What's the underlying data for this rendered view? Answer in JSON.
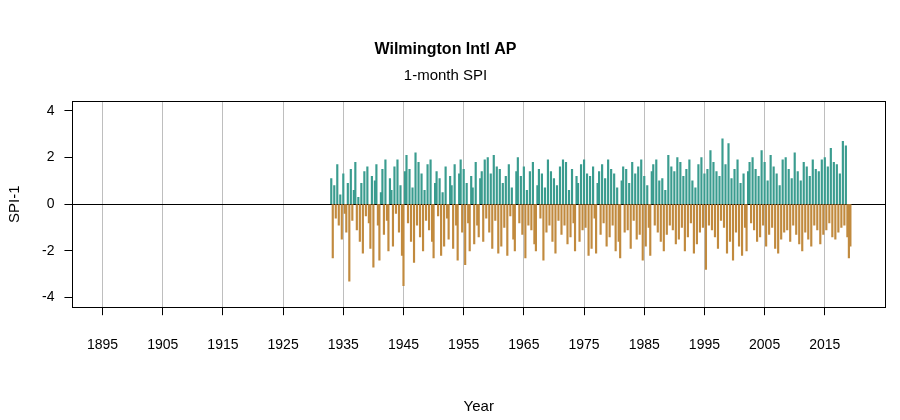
{
  "chart_data": {
    "type": "bar",
    "title": "Wilmington Intl AP",
    "subtitle": "1-month SPI",
    "x_label": "Year",
    "y_label": "SPI-1",
    "x": [
      1933,
      1933.25,
      1933.5,
      1933.75,
      1934,
      1934.25,
      1934.5,
      1934.75,
      1935,
      1935.25,
      1935.5,
      1935.75,
      1936,
      1936.25,
      1936.5,
      1936.75,
      1937,
      1937.25,
      1937.5,
      1937.75,
      1938,
      1938.25,
      1938.5,
      1938.75,
      1939,
      1939.25,
      1939.5,
      1939.75,
      1940,
      1940.25,
      1940.5,
      1940.75,
      1941,
      1941.25,
      1941.5,
      1941.75,
      1942,
      1942.25,
      1942.5,
      1942.75,
      1943,
      1943.25,
      1943.5,
      1943.75,
      1944,
      1944.25,
      1944.5,
      1944.75,
      1945,
      1945.25,
      1945.5,
      1945.75,
      1946,
      1946.25,
      1946.5,
      1946.75,
      1947,
      1947.25,
      1947.5,
      1947.75,
      1948,
      1948.25,
      1948.5,
      1948.75,
      1949,
      1949.25,
      1949.5,
      1949.75,
      1950,
      1950.25,
      1950.5,
      1950.75,
      1951,
      1951.25,
      1951.5,
      1951.75,
      1952,
      1952.25,
      1952.5,
      1952.75,
      1953,
      1953.25,
      1953.5,
      1953.75,
      1954,
      1954.25,
      1954.5,
      1954.75,
      1955,
      1955.25,
      1955.5,
      1955.75,
      1956,
      1956.25,
      1956.5,
      1956.75,
      1957,
      1957.25,
      1957.5,
      1957.75,
      1958,
      1958.25,
      1958.5,
      1958.75,
      1959,
      1959.25,
      1959.5,
      1959.75,
      1960,
      1960.25,
      1960.5,
      1960.75,
      1961,
      1961.25,
      1961.5,
      1961.75,
      1962,
      1962.25,
      1962.5,
      1962.75,
      1963,
      1963.25,
      1963.5,
      1963.75,
      1964,
      1964.25,
      1964.5,
      1964.75,
      1965,
      1965.25,
      1965.5,
      1965.75,
      1966,
      1966.25,
      1966.5,
      1966.75,
      1967,
      1967.25,
      1967.5,
      1967.75,
      1968,
      1968.25,
      1968.5,
      1968.75,
      1969,
      1969.25,
      1969.5,
      1969.75,
      1970,
      1970.25,
      1970.5,
      1970.75,
      1971,
      1971.25,
      1971.5,
      1971.75,
      1972,
      1972.25,
      1972.5,
      1972.75,
      1973,
      1973.25,
      1973.5,
      1973.75,
      1974,
      1974.25,
      1974.5,
      1974.75,
      1975,
      1975.25,
      1975.5,
      1975.75,
      1976,
      1976.25,
      1976.5,
      1976.75,
      1977,
      1977.25,
      1977.5,
      1977.75,
      1978,
      1978.25,
      1978.5,
      1978.75,
      1979,
      1979.25,
      1979.5,
      1979.75,
      1980,
      1980.25,
      1980.5,
      1980.75,
      1981,
      1981.25,
      1981.5,
      1981.75,
      1982,
      1982.25,
      1982.5,
      1982.75,
      1983,
      1983.25,
      1983.5,
      1983.75,
      1984,
      1984.25,
      1984.5,
      1984.75,
      1985,
      1985.25,
      1985.5,
      1985.75,
      1986,
      1986.25,
      1986.5,
      1986.75,
      1987,
      1987.25,
      1987.5,
      1987.75,
      1988,
      1988.25,
      1988.5,
      1988.75,
      1989,
      1989.25,
      1989.5,
      1989.75,
      1990,
      1990.25,
      1990.5,
      1990.75,
      1991,
      1991.25,
      1991.5,
      1991.75,
      1992,
      1992.25,
      1992.5,
      1992.75,
      1993,
      1993.25,
      1993.5,
      1993.75,
      1994,
      1994.25,
      1994.5,
      1994.75,
      1995,
      1995.25,
      1995.5,
      1995.75,
      1996,
      1996.25,
      1996.5,
      1996.75,
      1997,
      1997.25,
      1997.5,
      1997.75,
      1998,
      1998.25,
      1998.5,
      1998.75,
      1999,
      1999.25,
      1999.5,
      1999.75,
      2000,
      2000.25,
      2000.5,
      2000.75,
      2001,
      2001.25,
      2001.5,
      2001.75,
      2002,
      2002.25,
      2002.5,
      2002.75,
      2003,
      2003.25,
      2003.5,
      2003.75,
      2004,
      2004.25,
      2004.5,
      2004.75,
      2005,
      2005.25,
      2005.5,
      2005.75,
      2006,
      2006.25,
      2006.5,
      2006.75,
      2007,
      2007.25,
      2007.5,
      2007.75,
      2008,
      2008.25,
      2008.5,
      2008.75,
      2009,
      2009.25,
      2009.5,
      2009.75,
      2010,
      2010.25,
      2010.5,
      2010.75,
      2011,
      2011.25,
      2011.5,
      2011.75,
      2012,
      2012.25,
      2012.5,
      2012.75,
      2013,
      2013.25,
      2013.5,
      2013.75,
      2014,
      2014.25,
      2014.5,
      2014.75,
      2015,
      2015.25,
      2015.5,
      2015.75,
      2016,
      2016.25,
      2016.5,
      2016.75,
      2017,
      2017.25,
      2017.5,
      2017.75,
      2018,
      2018.25,
      2018.5,
      2018.75,
      2019,
      2019.25
    ],
    "values": [
      1.1,
      -2.3,
      0.8,
      -0.6,
      1.7,
      -0.9,
      0.4,
      -1.5,
      1.3,
      -0.4,
      -1.2,
      0.9,
      -3.3,
      1.5,
      -0.7,
      0.6,
      1.8,
      -1.1,
      0.3,
      -1.6,
      0.9,
      -2.1,
      1.4,
      -0.5,
      1.6,
      -0.8,
      -1.9,
      1.2,
      -2.7,
      1.0,
      1.7,
      -0.9,
      -2.4,
      0.5,
      1.5,
      -1.3,
      1.9,
      -0.7,
      -2.0,
      1.1,
      0.6,
      -1.8,
      1.6,
      -0.4,
      1.9,
      -1.2,
      0.8,
      -2.2,
      -3.5,
      1.4,
      2.1,
      -0.8,
      1.5,
      -1.6,
      0.7,
      -2.5,
      2.2,
      -0.9,
      1.8,
      -1.4,
      1.3,
      -2.0,
      0.6,
      -0.7,
      1.7,
      -1.1,
      1.9,
      -1.6,
      -2.3,
      0.9,
      1.4,
      -0.5,
      1.1,
      -2.2,
      0.5,
      -1.8,
      1.6,
      -0.6,
      -1.5,
      1.2,
      0.8,
      -1.9,
      1.7,
      -0.9,
      -2.4,
      1.3,
      1.9,
      -1.2,
      1.5,
      -2.6,
      0.9,
      -0.8,
      -2.0,
      1.2,
      0.7,
      -1.7,
      1.8,
      -0.9,
      -1.4,
      1.1,
      1.4,
      -1.6,
      1.9,
      -0.6,
      2.0,
      -1.2,
      1.3,
      -1.9,
      2.1,
      -0.7,
      1.6,
      -2.1,
      1.5,
      -1.8,
      0.9,
      -1.0,
      1.2,
      -2.2,
      1.7,
      -0.5,
      0.7,
      -1.5,
      -2.0,
      1.4,
      2.0,
      -0.8,
      1.2,
      -1.3,
      1.6,
      -2.3,
      0.6,
      -0.9,
      1.4,
      -1.1,
      1.8,
      -1.7,
      -2.0,
      0.8,
      1.5,
      -0.6,
      1.3,
      -2.4,
      0.7,
      -1.2,
      1.9,
      -0.9,
      1.4,
      -1.6,
      1.1,
      -2.1,
      0.8,
      -0.7,
      1.6,
      -1.3,
      1.9,
      -0.9,
      1.8,
      -1.7,
      0.6,
      -1.4,
      1.5,
      -0.8,
      -2.0,
      1.2,
      0.9,
      -1.6,
      1.7,
      -1.1,
      1.9,
      -1.0,
      1.3,
      -2.2,
      1.2,
      -1.9,
      1.6,
      -0.6,
      -2.1,
      0.9,
      1.4,
      -1.3,
      1.7,
      -0.8,
      1.1,
      -1.8,
      1.9,
      -1.4,
      1.5,
      -0.9,
      1.3,
      -2.0,
      0.7,
      -1.6,
      -2.3,
      1.0,
      1.6,
      -1.2,
      1.5,
      -1.1,
      0.9,
      -1.9,
      1.8,
      -0.7,
      1.3,
      -1.5,
      1.6,
      -1.3,
      1.9,
      -2.4,
      1.2,
      -1.8,
      0.8,
      -1.0,
      -2.2,
      1.4,
      1.7,
      -0.9,
      1.9,
      -1.2,
      1.0,
      -1.6,
      1.1,
      -2.0,
      0.6,
      -1.3,
      2.1,
      -0.9,
      1.6,
      -1.1,
      1.4,
      -1.7,
      2.0,
      -1.5,
      1.8,
      -1.0,
      1.2,
      -2.0,
      1.5,
      -1.4,
      1.9,
      -0.8,
      1.0,
      -2.1,
      0.7,
      -1.7,
      1.7,
      -1.2,
      2.0,
      -1.0,
      1.3,
      -2.8,
      1.5,
      -0.9,
      2.3,
      -1.1,
      1.8,
      -1.4,
      1.4,
      -1.9,
      1.2,
      -0.7,
      2.8,
      -1.0,
      1.7,
      -2.1,
      2.6,
      -1.6,
      1.1,
      -2.4,
      1.5,
      -1.2,
      1.9,
      -1.8,
      0.9,
      -2.2,
      1.3,
      -1.0,
      -2.0,
      1.4,
      1.8,
      -0.8,
      2.0,
      -1.1,
      1.5,
      -1.6,
      1.2,
      -1.4,
      2.3,
      -0.9,
      1.8,
      -1.8,
      1.0,
      -1.3,
      2.1,
      -1.0,
      1.6,
      -1.9,
      1.3,
      -2.1,
      0.8,
      -1.5,
      1.9,
      -1.2,
      2.0,
      -1.1,
      1.5,
      -1.6,
      1.1,
      -0.9,
      2.2,
      -1.3,
      1.4,
      -1.7,
      1.0,
      -2.0,
      1.8,
      -1.2,
      1.6,
      -1.5,
      1.2,
      -1.8,
      1.9,
      -0.9,
      1.5,
      -1.1,
      1.4,
      -1.7,
      1.9,
      -1.3,
      2.0,
      -1.1,
      1.6,
      -0.8,
      2.4,
      -1.4,
      1.8,
      -1.5,
      1.7,
      -1.2,
      1.3,
      -1.0,
      2.7,
      -0.9,
      2.5,
      -1.4,
      -2.3,
      -1.8
    ],
    "color": {
      "positive": "#3a9c8f",
      "negative": "#c18a3e"
    },
    "xlim": [
      1890,
      2025
    ],
    "xticks": [
      1895,
      1905,
      1915,
      1925,
      1935,
      1945,
      1955,
      1965,
      1975,
      1985,
      1995,
      2005,
      2015
    ],
    "ylim": [
      -4.42,
      4.42
    ],
    "yticks": [
      -4,
      -2,
      0,
      2,
      4
    ],
    "grid": true
  }
}
